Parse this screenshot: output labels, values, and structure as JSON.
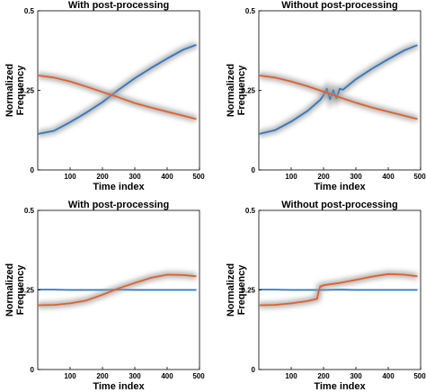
{
  "colors": {
    "blue": "#2e78c2",
    "orange": "#e2602a",
    "shadow": "#9a9a9a"
  },
  "chart_data": [
    {
      "type": "line",
      "title": "With post-processing",
      "xlabel": "Time index",
      "ylabel": "Normalized Frequency",
      "xlim": [
        0,
        500
      ],
      "ylim": [
        0,
        0.5
      ],
      "xticks": [
        "100",
        "200",
        "300",
        "400",
        "500"
      ],
      "yticks": [
        "0",
        "0.25",
        "0.5"
      ],
      "grid": false,
      "series": [
        {
          "x": [
            0,
            50,
            100,
            150,
            200,
            250,
            300,
            350,
            400,
            450,
            490
          ],
          "values": [
            0.113,
            0.123,
            0.15,
            0.18,
            0.213,
            0.252,
            0.288,
            0.32,
            0.35,
            0.378,
            0.393
          ]
        },
        {
          "x": [
            0,
            50,
            100,
            150,
            200,
            250,
            300,
            350,
            400,
            450,
            490
          ],
          "values": [
            0.297,
            0.29,
            0.278,
            0.262,
            0.245,
            0.228,
            0.21,
            0.196,
            0.183,
            0.17,
            0.16
          ]
        }
      ]
    },
    {
      "type": "line",
      "title": "Without post-processing",
      "xlabel": "Time index",
      "ylabel": "Normalized Frequency",
      "xlim": [
        0,
        500
      ],
      "ylim": [
        0,
        0.5
      ],
      "xticks": [
        "100",
        "200",
        "300",
        "400",
        "500"
      ],
      "yticks": [
        "0",
        "0.25",
        "0.5"
      ],
      "grid": false,
      "series": [
        {
          "x": [
            0,
            50,
            100,
            150,
            190,
            200,
            210,
            220,
            230,
            240,
            250,
            260,
            300,
            350,
            400,
            450,
            490
          ],
          "values": [
            0.113,
            0.125,
            0.152,
            0.185,
            0.22,
            0.235,
            0.255,
            0.222,
            0.25,
            0.225,
            0.255,
            0.252,
            0.285,
            0.318,
            0.348,
            0.376,
            0.392
          ]
        },
        {
          "x": [
            0,
            50,
            100,
            150,
            200,
            250,
            300,
            350,
            400,
            450,
            490
          ],
          "values": [
            0.297,
            0.29,
            0.278,
            0.263,
            0.246,
            0.228,
            0.211,
            0.196,
            0.183,
            0.17,
            0.16
          ]
        }
      ]
    },
    {
      "type": "line",
      "title": "With post-processing",
      "xlabel": "Time index",
      "ylabel": "Normalized Frequency",
      "xlim": [
        0,
        500
      ],
      "ylim": [
        0,
        0.5
      ],
      "xticks": [
        "100",
        "200",
        "300",
        "400",
        "500"
      ],
      "yticks": [
        "0",
        "0.25",
        "0.5"
      ],
      "grid": false,
      "series": [
        {
          "x": [
            0,
            50,
            100,
            150,
            200,
            250,
            300,
            350,
            400,
            450,
            490
          ],
          "values": [
            0.251,
            0.251,
            0.25,
            0.25,
            0.25,
            0.251,
            0.25,
            0.25,
            0.25,
            0.25,
            0.25
          ]
        },
        {
          "x": [
            0,
            50,
            100,
            150,
            200,
            250,
            300,
            350,
            400,
            450,
            490
          ],
          "values": [
            0.202,
            0.203,
            0.208,
            0.217,
            0.235,
            0.255,
            0.272,
            0.288,
            0.298,
            0.297,
            0.293
          ]
        }
      ]
    },
    {
      "type": "line",
      "title": "Without post-processing",
      "xlabel": "Time index",
      "ylabel": "Normalized Frequency",
      "xlim": [
        0,
        500
      ],
      "ylim": [
        0,
        0.5
      ],
      "xticks": [
        "100",
        "200",
        "300",
        "400",
        "500"
      ],
      "yticks": [
        "0",
        "0.25",
        "0.5"
      ],
      "grid": false,
      "series": [
        {
          "x": [
            0,
            50,
            100,
            150,
            200,
            250,
            300,
            350,
            400,
            450,
            490
          ],
          "values": [
            0.251,
            0.251,
            0.25,
            0.25,
            0.25,
            0.251,
            0.25,
            0.25,
            0.25,
            0.25,
            0.25
          ]
        },
        {
          "x": [
            0,
            50,
            100,
            150,
            180,
            185,
            190,
            195,
            200,
            250,
            300,
            350,
            400,
            450,
            490
          ],
          "values": [
            0.202,
            0.203,
            0.208,
            0.215,
            0.222,
            0.245,
            0.262,
            0.262,
            0.265,
            0.272,
            0.282,
            0.292,
            0.3,
            0.298,
            0.293
          ]
        }
      ]
    }
  ]
}
